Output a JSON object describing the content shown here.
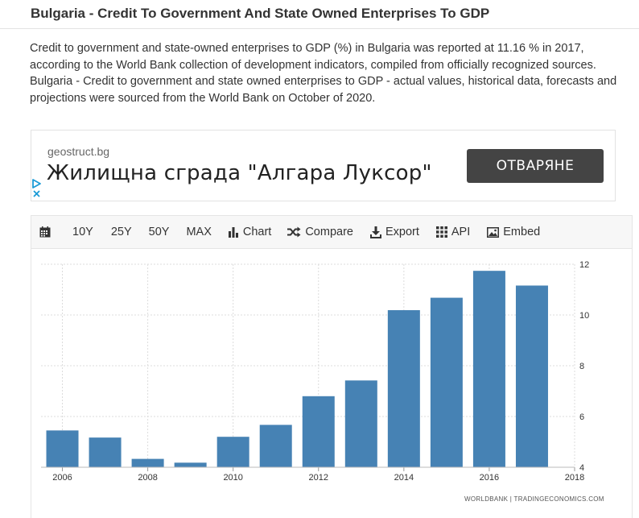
{
  "header": {
    "title": "Bulgaria - Credit To Government And State Owned Enterprises To GDP"
  },
  "description": "Credit to government and state-owned enterprises to GDP (%) in Bulgaria was reported at 11.16 % in 2017, according to the World Bank collection of development indicators, compiled from officially recognized sources. Bulgaria - Credit to government and state owned enterprises to GDP - actual values, historical data, forecasts and projections were sourced from the World Bank on October of 2020.",
  "ad": {
    "domain": "geostruct.bg",
    "headline": "Жилищна сграда \"Алгара Луксор\"",
    "button_label": "ОТВАРЯНЕ"
  },
  "toolbar": {
    "calendar_icon": "calendar-icon",
    "ranges": [
      "10Y",
      "25Y",
      "50Y",
      "MAX"
    ],
    "chart_label": "Chart",
    "compare_label": "Compare",
    "export_label": "Export",
    "api_label": "API",
    "embed_label": "Embed"
  },
  "chart_data": {
    "type": "bar",
    "x": [
      2006,
      2007,
      2008,
      2009,
      2010,
      2011,
      2012,
      2013,
      2014,
      2015,
      2016,
      2017
    ],
    "values": [
      5.45,
      5.17,
      4.33,
      4.18,
      5.2,
      5.67,
      6.8,
      7.42,
      10.19,
      10.68,
      11.74,
      11.16
    ],
    "xticks": [
      "2006",
      "2008",
      "2010",
      "2012",
      "2014",
      "2016",
      "2018"
    ],
    "yticks": [
      "4",
      "6",
      "8",
      "10",
      "12"
    ],
    "xlim": [
      2005.5,
      2018
    ],
    "ylim": [
      4,
      12
    ],
    "bar_color": "#4682b4",
    "grid": true,
    "yaxis_side": "right",
    "credit": "WORLDBANK | TRADINGECONOMICS.COM"
  }
}
